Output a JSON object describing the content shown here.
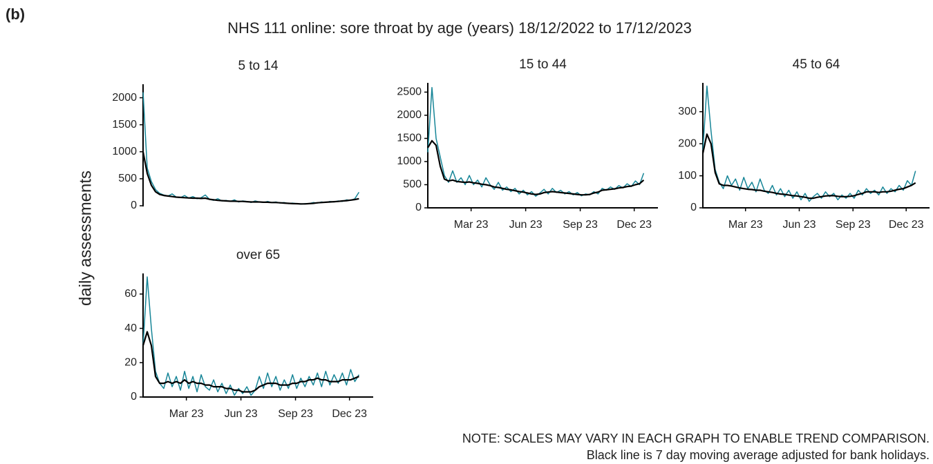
{
  "label": "(b)",
  "title": "NHS 111 online: sore throat by age (years) 18/12/2022 to 17/12/2023",
  "ylabel": "daily assessments",
  "notes": [
    "NOTE: SCALES MAY VARY IN EACH GRAPH TO ENABLE TREND COMPARISON.",
    "Black line is 7 day moving average adjusted for bank holidays."
  ],
  "chart_data": [
    {
      "type": "line",
      "title": "5 to 14",
      "x": [
        "2022-12-18",
        "2022-12-25",
        "2023-01-01",
        "2023-01-08",
        "2023-01-15",
        "2023-01-22",
        "2023-01-29",
        "2023-02-05",
        "2023-02-12",
        "2023-02-19",
        "2023-02-26",
        "2023-03-05",
        "2023-03-12",
        "2023-03-19",
        "2023-03-26",
        "2023-04-02",
        "2023-04-09",
        "2023-04-16",
        "2023-04-23",
        "2023-04-30",
        "2023-05-07",
        "2023-05-14",
        "2023-05-21",
        "2023-05-28",
        "2023-06-04",
        "2023-06-11",
        "2023-06-18",
        "2023-06-25",
        "2023-07-02",
        "2023-07-09",
        "2023-07-16",
        "2023-07-23",
        "2023-07-30",
        "2023-08-06",
        "2023-08-13",
        "2023-08-20",
        "2023-08-27",
        "2023-09-03",
        "2023-09-10",
        "2023-09-17",
        "2023-09-24",
        "2023-10-01",
        "2023-10-08",
        "2023-10-15",
        "2023-10-22",
        "2023-10-29",
        "2023-11-05",
        "2023-11-12",
        "2023-11-19",
        "2023-11-26",
        "2023-12-03",
        "2023-12-10",
        "2023-12-17"
      ],
      "xlim": [
        "2022-12-18",
        "2024-01-10"
      ],
      "ylim": [
        0,
        2250
      ],
      "yticks": [
        0,
        500,
        1000,
        1500,
        2000
      ],
      "series": [
        {
          "color": "#168597",
          "values": [
            2100,
            700,
            450,
            300,
            230,
            200,
            180,
            220,
            160,
            150,
            190,
            140,
            170,
            130,
            150,
            200,
            120,
            100,
            130,
            90,
            100,
            80,
            110,
            70,
            90,
            80,
            60,
            90,
            70,
            60,
            80,
            60,
            70,
            50,
            60,
            40,
            50,
            40,
            30,
            40,
            40,
            60,
            50,
            70,
            60,
            80,
            70,
            90,
            80,
            110,
            100,
            130,
            250
          ]
        },
        {
          "color": "#000000",
          "values": [
            1000,
            600,
            380,
            260,
            210,
            190,
            180,
            170,
            160,
            155,
            150,
            145,
            140,
            140,
            135,
            140,
            120,
            110,
            100,
            95,
            90,
            85,
            85,
            80,
            80,
            75,
            70,
            70,
            70,
            65,
            65,
            60,
            60,
            55,
            50,
            45,
            40,
            38,
            35,
            35,
            40,
            45,
            55,
            60,
            65,
            70,
            75,
            80,
            90,
            95,
            105,
            115,
            130
          ]
        }
      ]
    },
    {
      "type": "line",
      "title": "15 to 44",
      "x": [
        "2022-12-18",
        "2022-12-25",
        "2023-01-01",
        "2023-01-08",
        "2023-01-15",
        "2023-01-22",
        "2023-01-29",
        "2023-02-05",
        "2023-02-12",
        "2023-02-19",
        "2023-02-26",
        "2023-03-05",
        "2023-03-12",
        "2023-03-19",
        "2023-03-26",
        "2023-04-02",
        "2023-04-09",
        "2023-04-16",
        "2023-04-23",
        "2023-04-30",
        "2023-05-07",
        "2023-05-14",
        "2023-05-21",
        "2023-05-28",
        "2023-06-04",
        "2023-06-11",
        "2023-06-18",
        "2023-06-25",
        "2023-07-02",
        "2023-07-09",
        "2023-07-16",
        "2023-07-23",
        "2023-07-30",
        "2023-08-06",
        "2023-08-13",
        "2023-08-20",
        "2023-08-27",
        "2023-09-03",
        "2023-09-10",
        "2023-09-17",
        "2023-09-24",
        "2023-10-01",
        "2023-10-08",
        "2023-10-15",
        "2023-10-22",
        "2023-10-29",
        "2023-11-05",
        "2023-11-12",
        "2023-11-19",
        "2023-11-26",
        "2023-12-03",
        "2023-12-10",
        "2023-12-17"
      ],
      "xlim": [
        "2022-12-18",
        "2024-01-10"
      ],
      "xticks": [
        {
          "value": "2023-03-01",
          "label": "Mar 23"
        },
        {
          "value": "2023-06-01",
          "label": "Jun 23"
        },
        {
          "value": "2023-09-01",
          "label": "Sep 23"
        },
        {
          "value": "2023-12-01",
          "label": "Dec 23"
        }
      ],
      "ylim": [
        0,
        2700
      ],
      "yticks": [
        0,
        500,
        1000,
        1500,
        2000,
        2500
      ],
      "series": [
        {
          "color": "#168597",
          "values": [
            1200,
            2600,
            1500,
            1100,
            700,
            550,
            800,
            550,
            650,
            500,
            700,
            500,
            600,
            450,
            650,
            500,
            400,
            550,
            380,
            450,
            350,
            420,
            300,
            380,
            280,
            350,
            250,
            320,
            400,
            300,
            420,
            330,
            380,
            300,
            350,
            280,
            330,
            260,
            300,
            280,
            350,
            300,
            420,
            380,
            450,
            400,
            480,
            430,
            520,
            460,
            580,
            500,
            750
          ]
        },
        {
          "color": "#000000",
          "values": [
            1300,
            1450,
            1350,
            900,
            620,
            580,
            600,
            570,
            560,
            550,
            560,
            540,
            530,
            510,
            500,
            480,
            450,
            440,
            420,
            400,
            390,
            370,
            350,
            340,
            320,
            300,
            290,
            300,
            330,
            340,
            350,
            340,
            330,
            320,
            310,
            300,
            290,
            280,
            280,
            290,
            320,
            340,
            380,
            390,
            400,
            410,
            430,
            440,
            460,
            470,
            500,
            520,
            600
          ]
        }
      ]
    },
    {
      "type": "line",
      "title": "45 to 64",
      "x": [
        "2022-12-18",
        "2022-12-25",
        "2023-01-01",
        "2023-01-08",
        "2023-01-15",
        "2023-01-22",
        "2023-01-29",
        "2023-02-05",
        "2023-02-12",
        "2023-02-19",
        "2023-02-26",
        "2023-03-05",
        "2023-03-12",
        "2023-03-19",
        "2023-03-26",
        "2023-04-02",
        "2023-04-09",
        "2023-04-16",
        "2023-04-23",
        "2023-04-30",
        "2023-05-07",
        "2023-05-14",
        "2023-05-21",
        "2023-05-28",
        "2023-06-04",
        "2023-06-11",
        "2023-06-18",
        "2023-06-25",
        "2023-07-02",
        "2023-07-09",
        "2023-07-16",
        "2023-07-23",
        "2023-07-30",
        "2023-08-06",
        "2023-08-13",
        "2023-08-20",
        "2023-08-27",
        "2023-09-03",
        "2023-09-10",
        "2023-09-17",
        "2023-09-24",
        "2023-10-01",
        "2023-10-08",
        "2023-10-15",
        "2023-10-22",
        "2023-10-29",
        "2023-11-05",
        "2023-11-12",
        "2023-11-19",
        "2023-11-26",
        "2023-12-03",
        "2023-12-10",
        "2023-12-17"
      ],
      "xlim": [
        "2022-12-18",
        "2024-01-10"
      ],
      "xticks": [
        {
          "value": "2023-03-01",
          "label": "Mar 23"
        },
        {
          "value": "2023-06-01",
          "label": "Jun 23"
        },
        {
          "value": "2023-09-01",
          "label": "Sep 23"
        },
        {
          "value": "2023-12-01",
          "label": "Dec 23"
        }
      ],
      "ylim": [
        0,
        390
      ],
      "yticks": [
        0,
        100,
        200,
        300
      ],
      "series": [
        {
          "color": "#168597",
          "values": [
            180,
            380,
            240,
            120,
            80,
            60,
            100,
            70,
            90,
            55,
            95,
            60,
            80,
            50,
            90,
            55,
            45,
            70,
            40,
            60,
            35,
            55,
            30,
            50,
            25,
            45,
            20,
            35,
            45,
            30,
            50,
            35,
            45,
            25,
            40,
            30,
            45,
            30,
            55,
            40,
            60,
            45,
            55,
            40,
            65,
            45,
            60,
            50,
            70,
            55,
            85,
            70,
            115
          ]
        },
        {
          "color": "#000000",
          "values": [
            170,
            230,
            200,
            110,
            75,
            70,
            70,
            68,
            65,
            62,
            60,
            58,
            57,
            55,
            55,
            52,
            50,
            48,
            45,
            43,
            42,
            40,
            38,
            37,
            35,
            33,
            30,
            30,
            33,
            35,
            37,
            38,
            38,
            36,
            35,
            35,
            36,
            38,
            42,
            45,
            50,
            50,
            50,
            48,
            50,
            50,
            52,
            55,
            58,
            60,
            65,
            70,
            78
          ]
        }
      ]
    },
    {
      "type": "line",
      "title": "over 65",
      "x": [
        "2022-12-18",
        "2022-12-25",
        "2023-01-01",
        "2023-01-08",
        "2023-01-15",
        "2023-01-22",
        "2023-01-29",
        "2023-02-05",
        "2023-02-12",
        "2023-02-19",
        "2023-02-26",
        "2023-03-05",
        "2023-03-12",
        "2023-03-19",
        "2023-03-26",
        "2023-04-02",
        "2023-04-09",
        "2023-04-16",
        "2023-04-23",
        "2023-04-30",
        "2023-05-07",
        "2023-05-14",
        "2023-05-21",
        "2023-05-28",
        "2023-06-04",
        "2023-06-11",
        "2023-06-18",
        "2023-06-25",
        "2023-07-02",
        "2023-07-09",
        "2023-07-16",
        "2023-07-23",
        "2023-07-30",
        "2023-08-06",
        "2023-08-13",
        "2023-08-20",
        "2023-08-27",
        "2023-09-03",
        "2023-09-10",
        "2023-09-17",
        "2023-09-24",
        "2023-10-01",
        "2023-10-08",
        "2023-10-15",
        "2023-10-22",
        "2023-10-29",
        "2023-11-05",
        "2023-11-12",
        "2023-11-19",
        "2023-11-26",
        "2023-12-03",
        "2023-12-10",
        "2023-12-17"
      ],
      "xlim": [
        "2022-12-18",
        "2024-01-10"
      ],
      "xticks": [
        {
          "value": "2023-03-01",
          "label": "Mar 23"
        },
        {
          "value": "2023-06-01",
          "label": "Jun 23"
        },
        {
          "value": "2023-09-01",
          "label": "Sep 23"
        },
        {
          "value": "2023-12-01",
          "label": "Dec 23"
        }
      ],
      "ylim": [
        0,
        72
      ],
      "yticks": [
        0,
        20,
        40,
        60
      ],
      "series": [
        {
          "color": "#168597",
          "values": [
            30,
            70,
            40,
            15,
            8,
            5,
            14,
            6,
            12,
            4,
            15,
            5,
            12,
            3,
            13,
            6,
            4,
            10,
            3,
            8,
            2,
            7,
            1,
            5,
            2,
            6,
            1,
            4,
            12,
            5,
            14,
            6,
            12,
            4,
            10,
            5,
            13,
            5,
            11,
            6,
            12,
            7,
            14,
            6,
            15,
            7,
            13,
            8,
            14,
            7,
            16,
            9,
            13
          ]
        },
        {
          "color": "#000000",
          "values": [
            30,
            38,
            30,
            12,
            8,
            8,
            9,
            8,
            9,
            8,
            10,
            8,
            9,
            8,
            8,
            7,
            7,
            6,
            6,
            6,
            5,
            5,
            4,
            4,
            3,
            3,
            3,
            4,
            6,
            7,
            8,
            8,
            8,
            7,
            7,
            7,
            8,
            8,
            9,
            9,
            10,
            10,
            11,
            10,
            10,
            9,
            9,
            9,
            10,
            10,
            10,
            11,
            12
          ]
        }
      ]
    }
  ]
}
